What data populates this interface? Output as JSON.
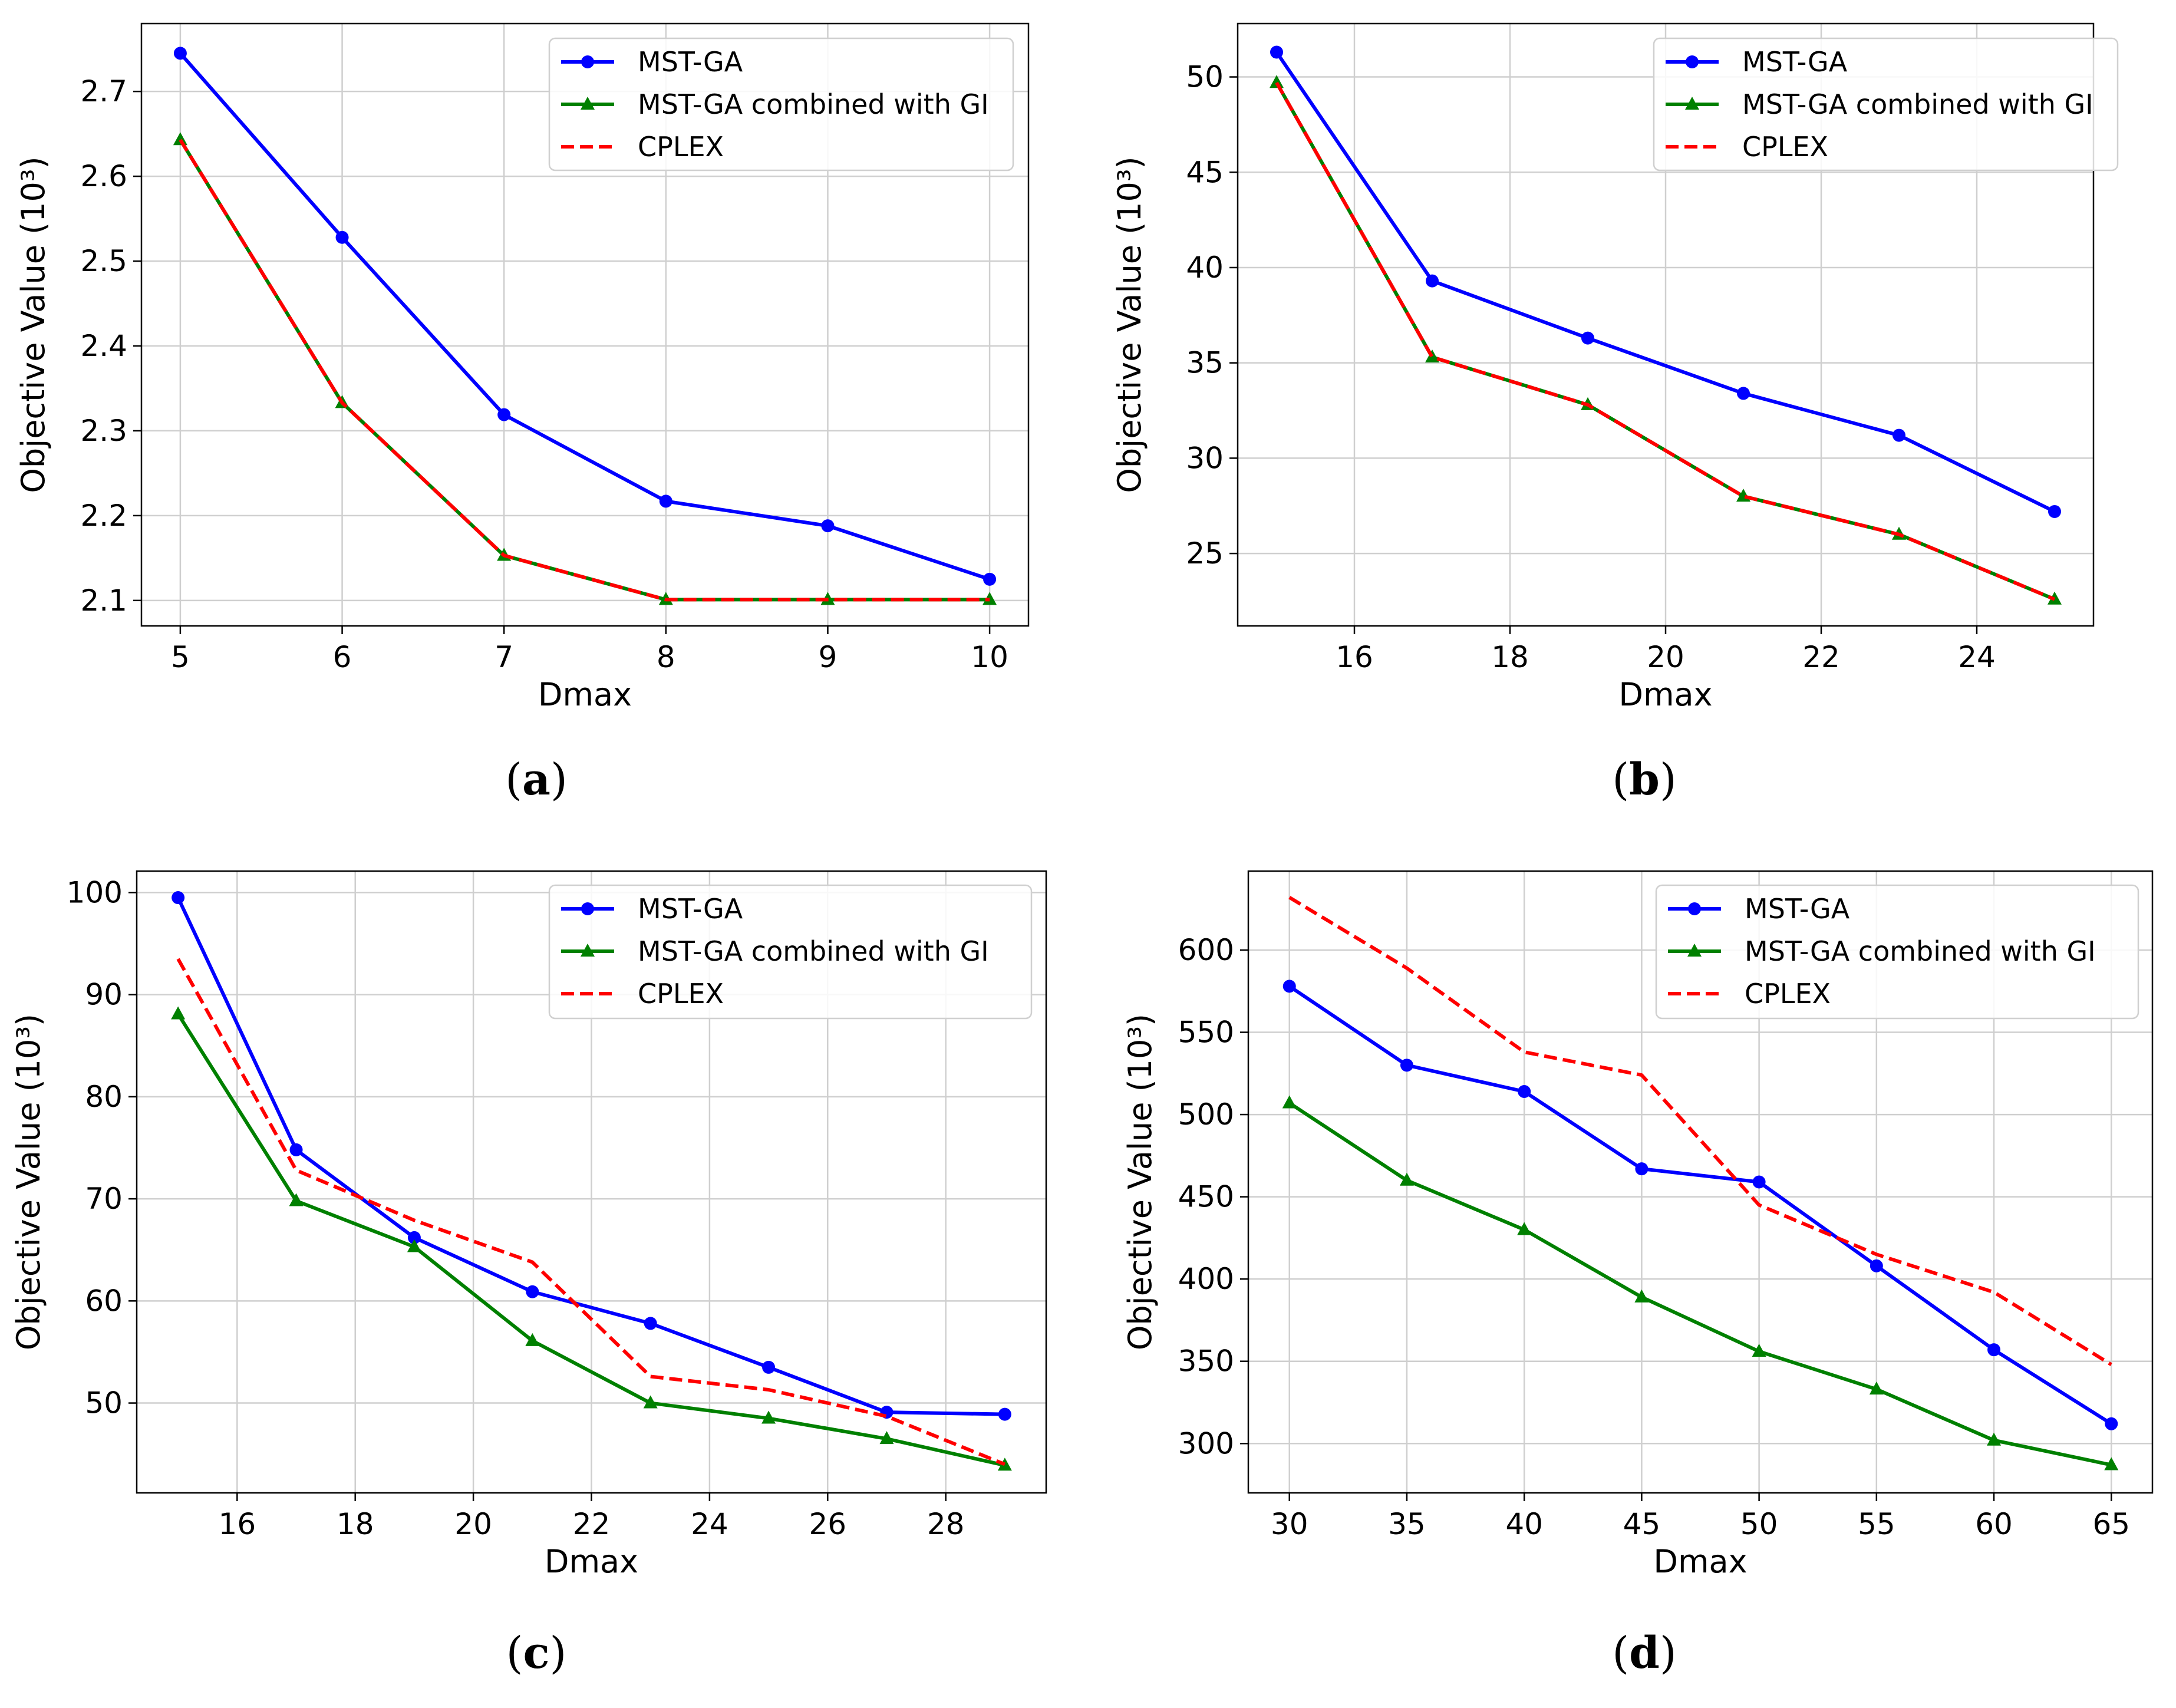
{
  "legend": {
    "mst_ga": "MST-GA",
    "mst_ga_gi": "MST-GA combined with GI",
    "cplex": "CPLEX"
  },
  "colors": {
    "mst_ga": "#0000ff",
    "mst_ga_gi": "#008000",
    "cplex": "#ff0000",
    "grid": "#cfcfcf"
  },
  "chart_data": [
    {
      "type": "line",
      "caption": "(a)",
      "caption_letter": "a",
      "xlabel": "Dmax",
      "ylabel": "Objective Value (10³)",
      "x": [
        5,
        6,
        7,
        8,
        9,
        10
      ],
      "xlim": [
        4.76,
        10.24
      ],
      "ylim": [
        2.07,
        2.78
      ],
      "xticks": [
        5,
        6,
        7,
        8,
        9,
        10
      ],
      "yticks": [
        2.1,
        2.2,
        2.3,
        2.4,
        2.5,
        2.6,
        2.7
      ],
      "ytick_decimals": 1,
      "series": [
        {
          "name": "MST-GA",
          "key": "mst_ga",
          "values": [
            2.745,
            2.528,
            2.319,
            2.217,
            2.188,
            2.125
          ]
        },
        {
          "name": "MST-GA combined with GI",
          "key": "mst_ga_gi",
          "values": [
            2.643,
            2.333,
            2.153,
            2.101,
            2.101,
            2.101
          ]
        },
        {
          "name": "CPLEX",
          "key": "cplex",
          "values": [
            2.643,
            2.333,
            2.153,
            2.101,
            2.101,
            2.101
          ]
        }
      ]
    },
    {
      "type": "line",
      "caption": "(b)",
      "caption_letter": "b",
      "xlabel": "Dmax",
      "ylabel": "Objective Value (10³)",
      "x": [
        15,
        17,
        19,
        21,
        23,
        25
      ],
      "xlim": [
        14.5,
        25.5
      ],
      "ylim": [
        21.2,
        52.8
      ],
      "xticks": [
        16,
        18,
        20,
        22,
        24
      ],
      "yticks": [
        25,
        30,
        35,
        40,
        45,
        50
      ],
      "ytick_decimals": 0,
      "series": [
        {
          "name": "MST-GA",
          "key": "mst_ga",
          "values": [
            51.3,
            39.3,
            36.3,
            33.4,
            31.2,
            27.2
          ]
        },
        {
          "name": "MST-GA combined with GI",
          "key": "mst_ga_gi",
          "values": [
            49.7,
            35.3,
            32.8,
            28.0,
            26.0,
            22.6
          ]
        },
        {
          "name": "CPLEX",
          "key": "cplex",
          "values": [
            49.7,
            35.3,
            32.8,
            28.0,
            26.0,
            22.6
          ]
        }
      ]
    },
    {
      "type": "line",
      "caption": "(c)",
      "caption_letter": "c",
      "xlabel": "Dmax",
      "ylabel": "Objective Value (10³)",
      "x": [
        15,
        17,
        19,
        21,
        23,
        25,
        27,
        29
      ],
      "xlim": [
        14.3,
        29.7
      ],
      "ylim": [
        41.2,
        102.1
      ],
      "xticks": [
        16,
        18,
        20,
        22,
        24,
        26,
        28
      ],
      "yticks": [
        50,
        60,
        70,
        80,
        90,
        100
      ],
      "ytick_decimals": 0,
      "series": [
        {
          "name": "MST-GA",
          "key": "mst_ga",
          "values": [
            99.5,
            74.8,
            66.2,
            60.9,
            57.8,
            53.5,
            49.1,
            48.9
          ]
        },
        {
          "name": "MST-GA combined with GI",
          "key": "mst_ga_gi",
          "values": [
            88.1,
            69.8,
            65.3,
            56.1,
            50.0,
            48.5,
            46.5,
            43.9
          ]
        },
        {
          "name": "CPLEX",
          "key": "cplex",
          "values": [
            93.5,
            72.8,
            67.9,
            63.8,
            52.6,
            51.3,
            48.7,
            44.0
          ]
        }
      ]
    },
    {
      "type": "line",
      "caption": "(d)",
      "caption_letter": "d",
      "xlabel": "Dmax",
      "ylabel": "Objective Value (10³)",
      "x": [
        30,
        35,
        40,
        45,
        50,
        55,
        60,
        65
      ],
      "xlim": [
        28.25,
        66.75
      ],
      "ylim": [
        270,
        648
      ],
      "xticks": [
        30,
        35,
        40,
        45,
        50,
        55,
        60,
        65
      ],
      "yticks": [
        300,
        350,
        400,
        450,
        500,
        550,
        600
      ],
      "ytick_decimals": 0,
      "series": [
        {
          "name": "MST-GA",
          "key": "mst_ga",
          "values": [
            578,
            530,
            514,
            467,
            459,
            408,
            357,
            312
          ]
        },
        {
          "name": "MST-GA combined with GI",
          "key": "mst_ga_gi",
          "values": [
            507,
            460,
            430,
            389,
            356,
            333,
            302,
            287
          ]
        },
        {
          "name": "CPLEX",
          "key": "cplex",
          "values": [
            632,
            589,
            538,
            524,
            445,
            415,
            392,
            348
          ]
        }
      ]
    }
  ]
}
